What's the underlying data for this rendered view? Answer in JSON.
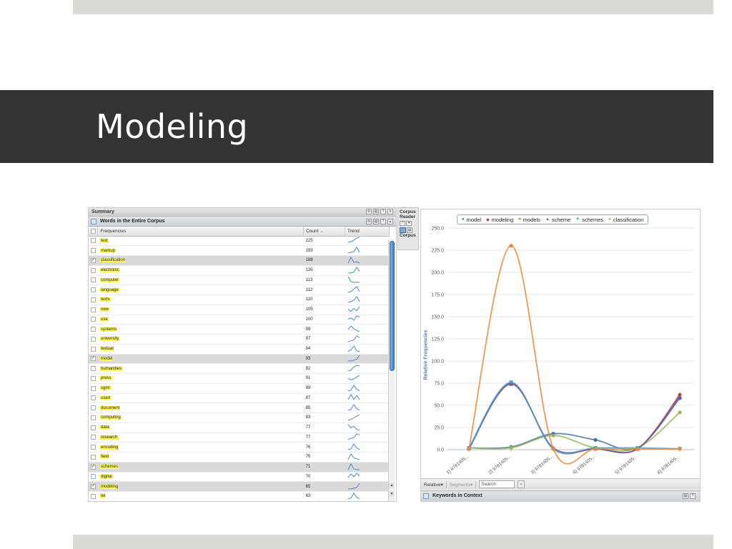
{
  "slide": {
    "title": "Modeling"
  },
  "summary": {
    "title": "Summary"
  },
  "words_panel": {
    "title": "Words in the Entire Corpus",
    "columns": {
      "frequencies": "Frequencies",
      "count": "Count",
      "trend": "Trend"
    },
    "rows": [
      {
        "word": "text",
        "count": "225",
        "checked": false,
        "trend": [
          2,
          3,
          5,
          8,
          9
        ]
      },
      {
        "word": "markup",
        "count": "193",
        "checked": false,
        "trend": [
          1,
          2,
          3,
          9,
          2
        ]
      },
      {
        "word": "classification",
        "count": "188",
        "checked": true,
        "trend": [
          1,
          9,
          2,
          3,
          1
        ]
      },
      {
        "word": "electronic",
        "count": "135",
        "checked": false,
        "trend": [
          1,
          1,
          2,
          8,
          3
        ]
      },
      {
        "word": "computer",
        "count": "113",
        "checked": false,
        "trend": [
          9,
          2,
          1,
          1,
          1
        ]
      },
      {
        "word": "language",
        "count": "112",
        "checked": false,
        "trend": [
          1,
          2,
          5,
          8,
          2
        ]
      },
      {
        "word": "texts",
        "count": "110",
        "checked": false,
        "trend": [
          1,
          2,
          4,
          9,
          2
        ]
      },
      {
        "word": "new",
        "count": "105",
        "checked": false,
        "trend": [
          5,
          2,
          6,
          3,
          8
        ]
      },
      {
        "word": "use",
        "count": "100",
        "checked": false,
        "trend": [
          3,
          4,
          2,
          6,
          5
        ]
      },
      {
        "word": "systems",
        "count": "99",
        "checked": false,
        "trend": [
          3,
          7,
          4,
          2,
          1
        ]
      },
      {
        "word": "university",
        "count": "97",
        "checked": false,
        "trend": [
          1,
          2,
          3,
          8,
          6
        ]
      },
      {
        "word": "textual",
        "count": "94",
        "checked": false,
        "trend": [
          1,
          3,
          8,
          2,
          1
        ]
      },
      {
        "word": "model",
        "count": "93",
        "checked": true,
        "trend": [
          1,
          1,
          2,
          3,
          8
        ]
      },
      {
        "word": "humanities",
        "count": "92",
        "checked": false,
        "trend": [
          1,
          2,
          6,
          8,
          7
        ]
      },
      {
        "word": "press",
        "count": "91",
        "checked": false,
        "trend": [
          4,
          2,
          3,
          5,
          7
        ]
      },
      {
        "word": "sgml",
        "count": "89",
        "checked": false,
        "trend": [
          1,
          2,
          8,
          3,
          1
        ]
      },
      {
        "word": "used",
        "count": "87",
        "checked": false,
        "trend": [
          2,
          8,
          2,
          7,
          2
        ]
      },
      {
        "word": "document",
        "count": "85",
        "checked": false,
        "trend": [
          1,
          2,
          8,
          3,
          1
        ]
      },
      {
        "word": "computing",
        "count": "83",
        "checked": false,
        "trend": [
          1,
          2,
          4,
          6,
          8
        ]
      },
      {
        "word": "data",
        "count": "77",
        "checked": false,
        "trend": [
          8,
          4,
          6,
          2,
          1
        ]
      },
      {
        "word": "research",
        "count": "77",
        "checked": false,
        "trend": [
          1,
          2,
          3,
          7,
          6
        ]
      },
      {
        "word": "encoding",
        "count": "76",
        "checked": false,
        "trend": [
          1,
          2,
          8,
          3,
          1
        ]
      },
      {
        "word": "field",
        "count": "75",
        "checked": false,
        "trend": [
          1,
          8,
          3,
          2,
          1
        ]
      },
      {
        "word": "schemes",
        "count": "71",
        "checked": true,
        "trend": [
          1,
          9,
          2,
          1,
          1
        ]
      },
      {
        "word": "digital",
        "count": "70",
        "checked": false,
        "trend": [
          3,
          8,
          4,
          9,
          5
        ]
      },
      {
        "word": "modeling",
        "count": "65",
        "checked": true,
        "trend": [
          1,
          1,
          2,
          3,
          9
        ]
      },
      {
        "word": "tei",
        "count": "63",
        "checked": false,
        "trend": [
          1,
          2,
          8,
          3,
          1
        ]
      }
    ]
  },
  "corpus_reader": {
    "title_line1": "Corpus",
    "title_line2": "Reader",
    "corpus_label": "Corpus"
  },
  "chart_data": {
    "type": "line",
    "title": "",
    "xlabel": "",
    "ylabel": "Relative Frequencies",
    "ylim": [
      0,
      250
    ],
    "yticks": [
      "0.0",
      "25.0",
      "50.0",
      "75.0",
      "100.0",
      "125.0",
      "150.0",
      "175.0",
      "200.0",
      "225.0",
      "250.0"
    ],
    "ytick_values": [
      0,
      25,
      50,
      75,
      100,
      125,
      150,
      175,
      200,
      225,
      250
    ],
    "categories": [
      "1) 9781405...",
      "2) 9781405...",
      "3) 9781405...",
      "4) 9781405...",
      "5) 9781405...",
      "6) 9781405..."
    ],
    "legend_position": "top",
    "grid": true,
    "series": [
      {
        "name": "model",
        "color": "#4a6fa5",
        "marker": "circle",
        "values": [
          2,
          3,
          18,
          11,
          2,
          58
        ]
      },
      {
        "name": "modeling",
        "color": "#c0392b",
        "marker": "diamond",
        "values": [
          1,
          75,
          1,
          1,
          1,
          62
        ]
      },
      {
        "name": "models",
        "color": "#8db85a",
        "marker": "square",
        "values": [
          2,
          2,
          16,
          2,
          2,
          42
        ]
      },
      {
        "name": "scheme",
        "color": "#6d5a9e",
        "marker": "triangle",
        "values": [
          1,
          74,
          2,
          1,
          1,
          60
        ]
      },
      {
        "name": "schemes",
        "color": "#4aa0c8",
        "marker": "triangle-down",
        "values": [
          2,
          76,
          1,
          2,
          2,
          1
        ]
      },
      {
        "name": "classification",
        "color": "#e8883a",
        "marker": "circle",
        "values": [
          1,
          230,
          1,
          1,
          1,
          1
        ]
      }
    ]
  },
  "chart_footer": {
    "relative": "Relative",
    "segments": "Segments",
    "search_placeholder": "Search"
  },
  "kic": {
    "title": "Keywords in Context"
  },
  "icons": {
    "gear": "gear-icon",
    "save": "save-icon",
    "help": "help-icon",
    "menu": "menu-icon",
    "sort": "sort-down-icon"
  }
}
